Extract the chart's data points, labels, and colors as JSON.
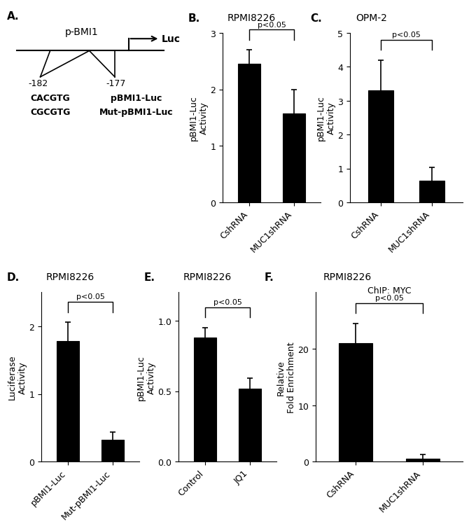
{
  "panel_A": {
    "label": "A.",
    "promoter_label": "p-BMI1",
    "luc_label": "Luc",
    "pos182": "-182",
    "pos177": "-177",
    "seq1": "CACGTG",
    "seq2": "CGCGTG",
    "construct1": "pBMI1-Luc",
    "construct2": "Mut-pBMI1-Luc"
  },
  "panel_B": {
    "label": "B.",
    "title": "RPMI8226",
    "categories": [
      "CshRNA",
      "MUC1shRNA"
    ],
    "values": [
      2.45,
      1.58
    ],
    "errors": [
      0.25,
      0.42
    ],
    "ylabel": "pBMI1-Luc\nActivity",
    "ylim": [
      0,
      3
    ],
    "yticks": [
      0,
      1,
      2,
      3
    ],
    "pval": "p<0.05"
  },
  "panel_C": {
    "label": "C.",
    "title": "OPM-2",
    "categories": [
      "CshRNA",
      "MUC1shRNA"
    ],
    "values": [
      3.3,
      0.65
    ],
    "errors": [
      0.9,
      0.38
    ],
    "ylabel": "pBMI1-Luc\nActivity",
    "ylim": [
      0,
      5
    ],
    "yticks": [
      0,
      1,
      2,
      3,
      4,
      5
    ],
    "pval": "p<0.05"
  },
  "panel_D": {
    "label": "D.",
    "title": "RPMI8226",
    "categories": [
      "pBMI1-Luc",
      "Mut-pBMI1-Luc"
    ],
    "values": [
      1.78,
      0.32
    ],
    "errors": [
      0.28,
      0.12
    ],
    "ylabel": "Luciferase\nActivity",
    "ylim": [
      0,
      2.5
    ],
    "yticks": [
      0,
      1,
      2
    ],
    "pval": "p<0.05"
  },
  "panel_E": {
    "label": "E.",
    "title": "RPMI8226",
    "categories": [
      "Control",
      "JQ1"
    ],
    "values": [
      0.88,
      0.52
    ],
    "errors": [
      0.07,
      0.07
    ],
    "ylabel": "pBMI1-Luc\nActivity",
    "ylim": [
      0,
      1.2
    ],
    "yticks": [
      0.0,
      0.5,
      1.0
    ],
    "pval": "p<0.05"
  },
  "panel_F": {
    "label": "F.",
    "title": "RPMI8226",
    "subtitle": "ChIP: MYC",
    "categories": [
      "CshRNA",
      "MUC1shRNA"
    ],
    "values": [
      21.0,
      0.5
    ],
    "errors": [
      3.5,
      0.8
    ],
    "ylabel": "Relative\nFold Enrichment",
    "ylim": [
      0,
      30
    ],
    "yticks": [
      0,
      10,
      20
    ],
    "pval": "p<0.05"
  },
  "bar_color": "#000000",
  "bar_width": 0.5,
  "tick_fontsize": 9,
  "label_fontsize": 9,
  "title_fontsize": 10,
  "panel_label_fontsize": 11
}
